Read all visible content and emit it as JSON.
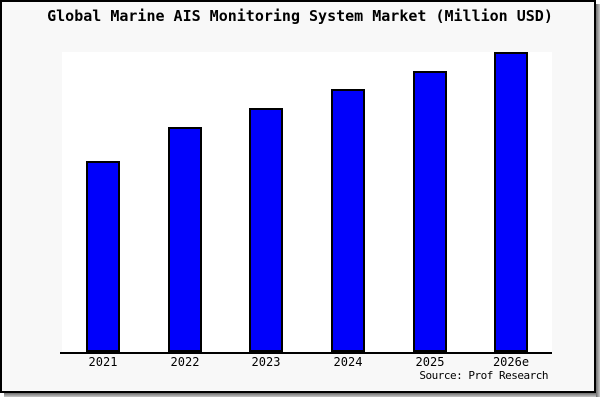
{
  "chart_data": {
    "type": "bar",
    "title": "Global Marine AIS Monitoring System Market (Million USD)",
    "categories": [
      "2021",
      "2022",
      "2023",
      "2024",
      "2025",
      "2026e"
    ],
    "values": [
      63.5,
      75.0,
      81.3,
      87.5,
      93.5,
      100.0
    ],
    "value_note": "No y-axis or data labels shown; values estimated from bar heights as percent of tallest bar (2026e = 100)",
    "xlabel": "",
    "ylabel": "",
    "ylim": [
      0,
      100
    ],
    "grid": false,
    "legend": false,
    "source": "Source: Prof Research"
  },
  "colors": {
    "bar_fill": "#0000fb",
    "bar_edge": "#000000",
    "frame_background": "#f8f8f8",
    "plot_background": "#ffffff",
    "axis_line": "#000000",
    "frame_border": "#000000",
    "shadow_dark": "#6e6e6e",
    "shadow_light": "#c6c6c6"
  }
}
